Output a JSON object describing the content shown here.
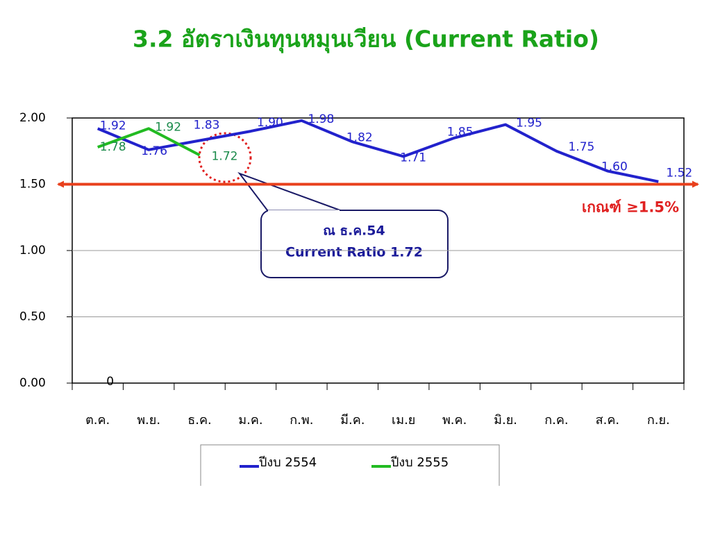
{
  "chart_data": {
    "type": "line",
    "title": "3.2 อัตราเงินทุนหมุนเวียน (Current Ratio)",
    "categories": [
      "ต.ค.",
      "พ.ย.",
      "ธ.ค.",
      "ม.ค.",
      "ก.พ.",
      "มี.ค.",
      "เม.ย",
      "พ.ค.",
      "มิ.ย.",
      "ก.ค.",
      "ส.ค.",
      "ก.ย."
    ],
    "series": [
      {
        "name": "ปีงบ 2554",
        "color": "#2222cc",
        "values": [
          1.92,
          1.76,
          1.83,
          1.9,
          1.98,
          1.82,
          1.71,
          1.85,
          1.95,
          1.75,
          1.6,
          1.52
        ],
        "value_labels": [
          "1.92",
          "1.76",
          "1.83",
          "1.90",
          "1.98",
          "1.82",
          "1.71",
          "1.85",
          "1.95",
          "1.75",
          "1.60",
          "1.52"
        ]
      },
      {
        "name": "ปีงบ 2555",
        "color": "#22bb22",
        "values": [
          1.78,
          1.92,
          1.72,
          null,
          null,
          null,
          null,
          null,
          null,
          null,
          null,
          null
        ],
        "value_labels": [
          "1.78",
          "1.92",
          "1.72",
          null,
          null,
          null,
          null,
          null,
          null,
          null,
          null,
          null
        ]
      }
    ],
    "ylim": [
      0,
      2
    ],
    "yticks": [
      {
        "value": 0,
        "label": "0.00"
      },
      {
        "value": 0.5,
        "label": "0.50"
      },
      {
        "value": 1,
        "label": "1.00"
      },
      {
        "value": 1.5,
        "label": "1.50"
      },
      {
        "value": 2,
        "label": "2.00"
      }
    ],
    "grid": true,
    "reference_line": {
      "value": 1.5,
      "label": "เกณฑ์ ≥1.5%",
      "color": "#e8401c"
    },
    "zero_label": {
      "value": 0,
      "label": "0"
    },
    "callout": [
      "ณ ธ.ค.54",
      "Current Ratio 1.72"
    ]
  }
}
